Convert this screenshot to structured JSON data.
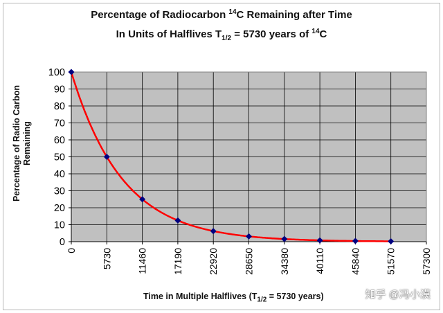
{
  "chart_data": {
    "type": "line",
    "title_line1_main": "Percentage of Radiocarbon ",
    "title_line1_sup": "14",
    "title_line1_rest": "C Remaining after Time",
    "title_line2_main": "In Units of Halflives T",
    "title_line2_sub": "1/2",
    "title_line2_mid": " = 5730 years of ",
    "title_line2_sup": "14",
    "title_line2_rest": "C",
    "ylabel_line1": "Percentage of Radio Carbon",
    "ylabel_line2": "Remaining",
    "xlabel_main": "Time in Multiple Halflives (T",
    "xlabel_sub": "1/2",
    "xlabel_rest": " = 5730 years)",
    "x_ticks": [
      "0",
      "5730",
      "11460",
      "17190",
      "22920",
      "28650",
      "34380",
      "40110",
      "45840",
      "51570",
      "57300"
    ],
    "y_ticks": [
      "0",
      "10",
      "20",
      "30",
      "40",
      "50",
      "60",
      "70",
      "80",
      "90",
      "100"
    ],
    "xlim": [
      0,
      57300
    ],
    "ylim": [
      0,
      100
    ],
    "grid": true,
    "plot_background": "#c0c0c0",
    "line_color": "#ff0000",
    "marker_color": "#000080",
    "series": [
      {
        "x": [
          0,
          5730,
          11460,
          17190,
          22920,
          28650,
          34380,
          40110,
          45840,
          51570
        ],
        "y": [
          100,
          50,
          25,
          12.5,
          6.25,
          3.125,
          1.5625,
          0.78125,
          0.390625,
          0.1953125
        ]
      }
    ]
  },
  "watermark": "知乎 @冯小漠"
}
